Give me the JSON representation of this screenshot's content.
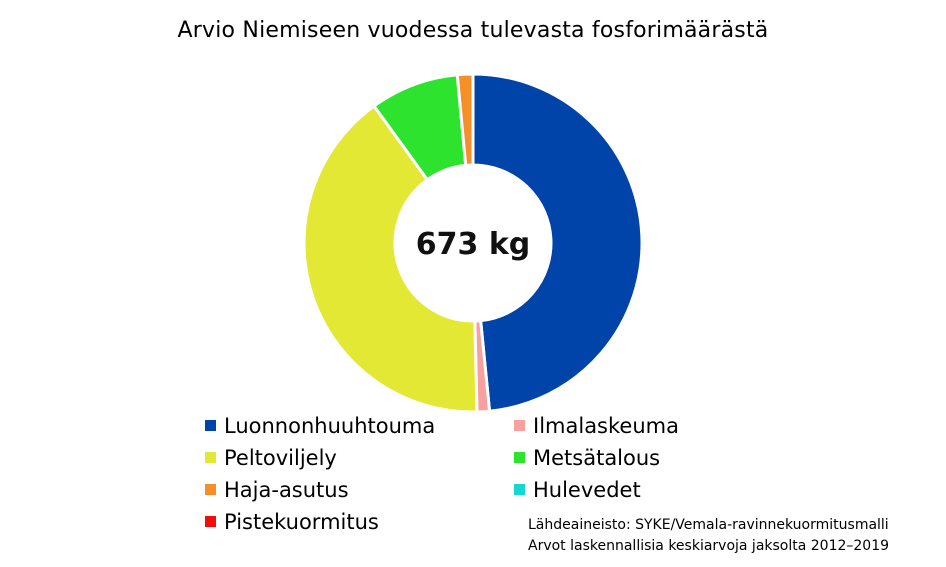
{
  "title": "Arvio Niemiseen vuodessa tulevasta fosforimäärästä",
  "center_label": "673 kg",
  "source": {
    "line1": "Lähdeaineisto: SYKE/Vemala-ravinnekuormitusmalli",
    "line2": "Arvot laskennallisia keskiarvoja jaksolta 2012–2019"
  },
  "chart_data": {
    "type": "pie",
    "title": "Arvio Niemiseen vuodessa tulevasta fosforimäärästä",
    "total_label": "673 kg",
    "unit": "kg",
    "categories": [
      "Luonnonhuuhtouma",
      "Ilmalaskeuma",
      "Peltoviljely",
      "Metsätalous",
      "Haja-asutus",
      "Hulevedet",
      "Pistekuormitus"
    ],
    "values": [
      326,
      8,
      272,
      57,
      10,
      0,
      0
    ],
    "colors": [
      "#0044A9",
      "#F7A0A0",
      "#E3E834",
      "#2EE32E",
      "#F58F2A",
      "#16D6D2",
      "#F20C0C"
    ],
    "legend_position": "bottom",
    "style": "donut"
  }
}
